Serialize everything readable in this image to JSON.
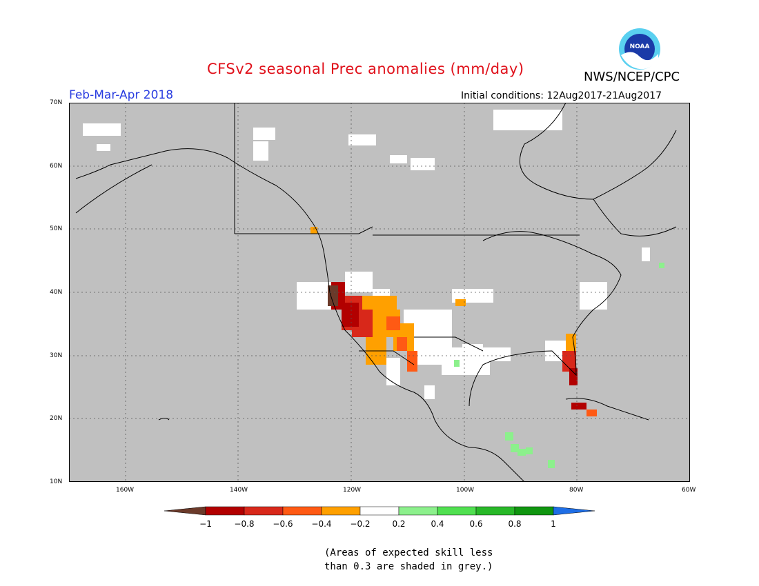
{
  "header": {
    "title": "CFSv2 seasonal Prec anomalies (mm/day)",
    "agency": "NWS/NCEP/CPC",
    "logo_text": "NOAA",
    "season": "Feb-Mar-Apr 2018",
    "initial_conditions": "Initial conditions: 12Aug2017-21Aug2017"
  },
  "map": {
    "lat_labels": [
      "70N",
      "60N",
      "50N",
      "40N",
      "30N",
      "20N",
      "10N"
    ],
    "lon_labels": [
      "160W",
      "140W",
      "120W",
      "100W",
      "80W",
      "60W"
    ],
    "background_color": "#c0c0c0"
  },
  "colorbar": {
    "tick_labels": [
      "−1",
      "−0.8",
      "−0.6",
      "−0.4",
      "−0.2",
      "0.2",
      "0.4",
      "0.6",
      "0.8",
      "1"
    ],
    "colors": [
      "#6b3a2a",
      "#b20000",
      "#d8281a",
      "#ff5a14",
      "#ffa000",
      "#ffffff",
      "#8cf08c",
      "#50e050",
      "#28b828",
      "#109610",
      "#1e6ee6"
    ]
  },
  "note": {
    "line1": "(Areas of expected skill less",
    "line2": "than 0.3 are shaded in grey.)"
  }
}
